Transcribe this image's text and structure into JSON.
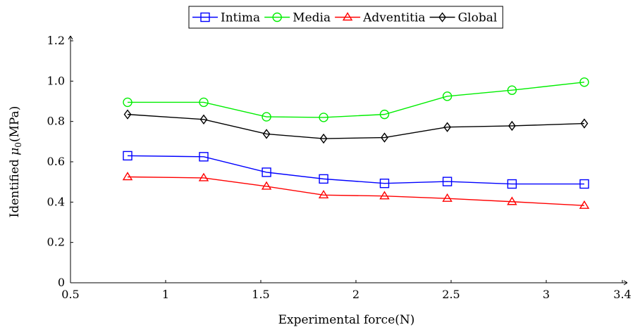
{
  "chart_data": {
    "type": "line",
    "xlabel": "Experimental force(N)",
    "ylabel_prefix": "Identified ",
    "ylabel_symbol": "μ",
    "ylabel_subscript": "0",
    "ylabel_suffix": "(MPa)",
    "xlim": [
      0.5,
      3.4
    ],
    "ylim": [
      0,
      1.2
    ],
    "xticks": [
      "0.5",
      "1",
      "1.5",
      "2",
      "2.5",
      "3",
      "3.4"
    ],
    "xtick_values": [
      0.5,
      1,
      1.5,
      2,
      2.5,
      3,
      3.4
    ],
    "yticks": [
      "0",
      "0.2",
      "0.4",
      "0.6",
      "0.8",
      "1.0",
      "1.2"
    ],
    "ytick_values": [
      0,
      0.2,
      0.4,
      0.6,
      0.8,
      1.0,
      1.2
    ],
    "grid": false,
    "legend_position": "top",
    "x": [
      0.8,
      1.2,
      1.53,
      1.83,
      2.15,
      2.48,
      2.82,
      3.2
    ],
    "series": [
      {
        "name": "Intima",
        "color": "#0000ff",
        "marker": "square",
        "values": [
          0.63,
          0.625,
          0.548,
          0.515,
          0.493,
          0.502,
          0.49,
          0.49
        ]
      },
      {
        "name": "Media",
        "color": "#00ee00",
        "marker": "circle",
        "values": [
          0.895,
          0.895,
          0.823,
          0.82,
          0.835,
          0.925,
          0.955,
          0.995
        ]
      },
      {
        "name": "Adventitia",
        "color": "#ff0000",
        "marker": "triangle",
        "values": [
          0.525,
          0.52,
          0.478,
          0.435,
          0.43,
          0.418,
          0.402,
          0.383
        ]
      },
      {
        "name": "Global",
        "color": "#000000",
        "marker": "diamond",
        "values": [
          0.835,
          0.81,
          0.738,
          0.715,
          0.72,
          0.772,
          0.778,
          0.79
        ]
      }
    ]
  }
}
